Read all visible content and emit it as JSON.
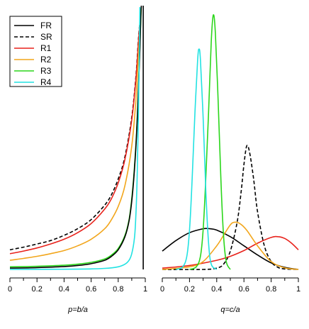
{
  "chart_data": [
    {
      "type": "line",
      "xlabel": "p=b/a",
      "ylabel": "",
      "xlim": [
        0,
        1
      ],
      "ylim": [
        0,
        1
      ],
      "x_ticks": [
        0,
        0.2,
        0.4,
        0.6,
        0.8,
        1
      ],
      "x_tick_labels": [
        "0",
        "0.2",
        "0.4",
        "0.6",
        "0.8",
        "1"
      ],
      "grid": false,
      "legend": {
        "position": "top-left",
        "entries": [
          {
            "label": "FR",
            "color": "#000000",
            "dash": "solid"
          },
          {
            "label": "SR",
            "color": "#000000",
            "dash": "dashed"
          },
          {
            "label": "R1",
            "color": "#e8221b",
            "dash": "solid"
          },
          {
            "label": "R2",
            "color": "#f2a61c",
            "dash": "solid"
          },
          {
            "label": "R3",
            "color": "#2bd61b",
            "dash": "solid"
          },
          {
            "label": "R4",
            "color": "#22e2e2",
            "dash": "solid"
          }
        ]
      },
      "series": [
        {
          "name": "SR",
          "color": "#000000",
          "dash": "dashed",
          "x": [
            0,
            0.1,
            0.2,
            0.3,
            0.4,
            0.5,
            0.6,
            0.7,
            0.75,
            0.8,
            0.85,
            0.9,
            0.93,
            0.95,
            0.97
          ],
          "y": [
            0.075,
            0.085,
            0.097,
            0.11,
            0.13,
            0.155,
            0.19,
            0.245,
            0.285,
            0.345,
            0.43,
            0.58,
            0.73,
            0.88,
            1.0
          ]
        },
        {
          "name": "R1",
          "color": "#e8221b",
          "dash": "solid",
          "x": [
            0,
            0.1,
            0.2,
            0.3,
            0.4,
            0.5,
            0.6,
            0.7,
            0.75,
            0.8,
            0.85,
            0.9,
            0.93,
            0.95,
            0.97
          ],
          "y": [
            0.06,
            0.07,
            0.082,
            0.097,
            0.115,
            0.14,
            0.175,
            0.23,
            0.27,
            0.33,
            0.42,
            0.57,
            0.72,
            0.87,
            1.0
          ]
        },
        {
          "name": "R2",
          "color": "#f2a61c",
          "dash": "solid",
          "x": [
            0,
            0.1,
            0.2,
            0.3,
            0.4,
            0.5,
            0.6,
            0.7,
            0.75,
            0.8,
            0.85,
            0.9,
            0.93,
            0.95,
            0.97
          ],
          "y": [
            0.035,
            0.042,
            0.05,
            0.06,
            0.072,
            0.09,
            0.115,
            0.155,
            0.19,
            0.24,
            0.32,
            0.47,
            0.64,
            0.82,
            1.0
          ]
        },
        {
          "name": "R3",
          "color": "#2bd61b",
          "dash": "solid",
          "x": [
            0,
            0.2,
            0.4,
            0.5,
            0.6,
            0.7,
            0.75,
            0.8,
            0.85,
            0.88,
            0.9,
            0.92,
            0.94,
            0.96,
            0.97
          ],
          "y": [
            0.01,
            0.012,
            0.016,
            0.02,
            0.027,
            0.04,
            0.055,
            0.08,
            0.13,
            0.19,
            0.27,
            0.39,
            0.57,
            0.85,
            1.0
          ]
        },
        {
          "name": "FR",
          "color": "#000000",
          "dash": "solid",
          "x": [
            0,
            0.2,
            0.4,
            0.5,
            0.6,
            0.7,
            0.75,
            0.8,
            0.85,
            0.88,
            0.9,
            0.92,
            0.94,
            0.96,
            0.97,
            0.985,
            0.985
          ],
          "y": [
            0.005,
            0.007,
            0.011,
            0.015,
            0.022,
            0.035,
            0.05,
            0.075,
            0.125,
            0.185,
            0.26,
            0.38,
            0.56,
            0.84,
            1.0,
            1.0,
            0.0
          ]
        },
        {
          "name": "R4",
          "color": "#22e2e2",
          "dash": "solid",
          "x": [
            0,
            0.5,
            0.7,
            0.8,
            0.85,
            0.88,
            0.9,
            0.92,
            0.93,
            0.94,
            0.95,
            0.96
          ],
          "y": [
            0.0,
            0.001,
            0.004,
            0.01,
            0.02,
            0.035,
            0.06,
            0.12,
            0.2,
            0.35,
            0.6,
            1.0
          ]
        }
      ]
    },
    {
      "type": "line",
      "xlabel": "q=c/a",
      "ylabel": "",
      "xlim": [
        0,
        1
      ],
      "ylim": [
        0,
        1
      ],
      "x_ticks": [
        0,
        0.2,
        0.4,
        0.6,
        0.8,
        1
      ],
      "x_tick_labels": [
        "0",
        "0.2",
        "0.4",
        "0.6",
        "0.8",
        "1"
      ],
      "grid": false,
      "series": [
        {
          "name": "FR",
          "color": "#000000",
          "dash": "solid",
          "x": [
            0,
            0.1,
            0.2,
            0.3,
            0.35,
            0.4,
            0.5,
            0.6,
            0.7,
            0.8,
            0.9,
            1.0
          ],
          "y": [
            0.07,
            0.11,
            0.14,
            0.155,
            0.155,
            0.15,
            0.125,
            0.09,
            0.055,
            0.025,
            0.008,
            0.0
          ]
        },
        {
          "name": "SR",
          "color": "#000000",
          "dash": "dashed",
          "x": [
            0,
            0.3,
            0.4,
            0.45,
            0.5,
            0.55,
            0.58,
            0.6,
            0.62,
            0.64,
            0.67,
            0.7,
            0.75,
            0.8,
            0.85,
            0.9,
            1.0
          ],
          "y": [
            0.0,
            0.0,
            0.005,
            0.02,
            0.07,
            0.18,
            0.3,
            0.4,
            0.47,
            0.45,
            0.35,
            0.22,
            0.09,
            0.03,
            0.008,
            0.002,
            0.0
          ]
        },
        {
          "name": "R1",
          "color": "#e8221b",
          "dash": "solid",
          "x": [
            0,
            0.2,
            0.4,
            0.5,
            0.6,
            0.7,
            0.8,
            0.85,
            0.9,
            0.95,
            1.0
          ],
          "y": [
            0.005,
            0.015,
            0.035,
            0.05,
            0.072,
            0.1,
            0.122,
            0.125,
            0.118,
            0.1,
            0.075
          ]
        },
        {
          "name": "R2",
          "color": "#f2a61c",
          "dash": "solid",
          "x": [
            0,
            0.2,
            0.3,
            0.4,
            0.45,
            0.5,
            0.53,
            0.57,
            0.62,
            0.7,
            0.8,
            0.9,
            1.0
          ],
          "y": [
            0.0,
            0.01,
            0.03,
            0.09,
            0.13,
            0.17,
            0.18,
            0.175,
            0.15,
            0.09,
            0.03,
            0.006,
            0.0
          ]
        },
        {
          "name": "R3",
          "color": "#2bd61b",
          "dash": "solid",
          "x": [
            0.2,
            0.25,
            0.28,
            0.3,
            0.32,
            0.34,
            0.36,
            0.375,
            0.39,
            0.41,
            0.43,
            0.45,
            0.47,
            0.5
          ],
          "y": [
            0.0,
            0.01,
            0.05,
            0.15,
            0.35,
            0.6,
            0.87,
            0.97,
            0.9,
            0.65,
            0.35,
            0.13,
            0.03,
            0.0
          ]
        },
        {
          "name": "R4",
          "color": "#22e2e2",
          "dash": "solid",
          "x": [
            0.1,
            0.15,
            0.18,
            0.2,
            0.22,
            0.24,
            0.26,
            0.27,
            0.28,
            0.3,
            0.32,
            0.34,
            0.36,
            0.4
          ],
          "y": [
            0.0,
            0.01,
            0.05,
            0.15,
            0.35,
            0.6,
            0.8,
            0.84,
            0.8,
            0.58,
            0.3,
            0.1,
            0.02,
            0.0
          ]
        }
      ]
    }
  ]
}
